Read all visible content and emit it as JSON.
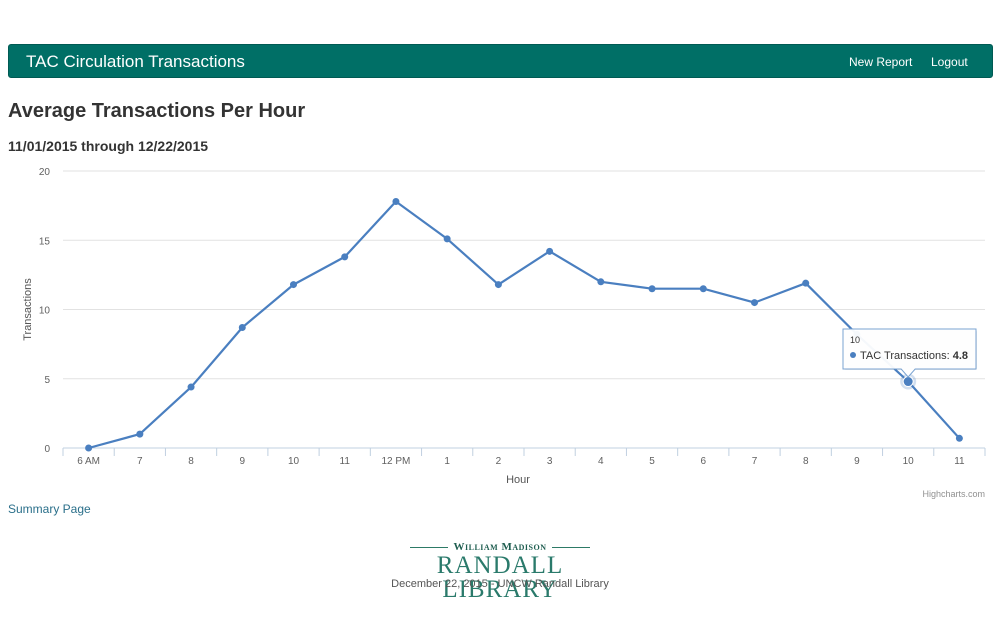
{
  "navbar": {
    "title": "TAC Circulation Transactions",
    "new_report": "New Report",
    "logout": "Logout"
  },
  "page": {
    "title": "Average Transactions Per Hour",
    "date_range": "11/01/2015 through 12/22/2015"
  },
  "chart_data": {
    "type": "line",
    "categories": [
      "6 AM",
      "7",
      "8",
      "9",
      "10",
      "11",
      "12 PM",
      "1",
      "2",
      "3",
      "4",
      "5",
      "6",
      "7",
      "8",
      "9",
      "10",
      "11"
    ],
    "series": [
      {
        "name": "TAC Transactions",
        "values": [
          0.0,
          1.0,
          4.4,
          8.7,
          11.8,
          13.8,
          17.8,
          15.1,
          11.8,
          14.2,
          12.0,
          11.5,
          11.5,
          10.5,
          11.9,
          8.2,
          4.8,
          0.7
        ],
        "color": "#4a7fc0"
      }
    ],
    "xlabel": "Hour",
    "ylabel": "Transactions",
    "ylim": [
      0,
      20
    ],
    "yticks": [
      0,
      5,
      10,
      15,
      20
    ],
    "grid": true,
    "credits": "Highcharts.com",
    "tooltip": {
      "category": "10",
      "series": "TAC Transactions: ",
      "value": "4.8",
      "point_index": 16
    }
  },
  "links": {
    "summary": "Summary Page"
  },
  "footer": {
    "logo_top": "William Madison",
    "logo_main": "RANDALL LIBRARY",
    "text": "December 22, 2015 - UNCW Randall Library"
  }
}
